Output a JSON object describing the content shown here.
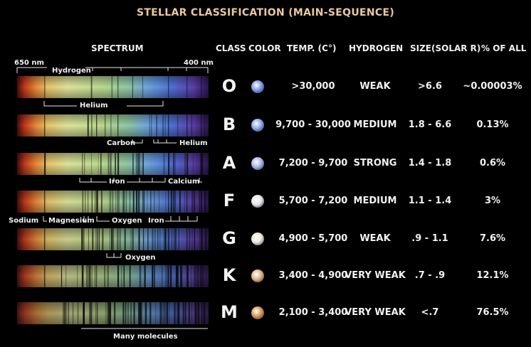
{
  "title": "STELLAR CLASSIFICATION (MAIN-SEQUENCE)",
  "headers": {
    "spectrum": "SPECTRUM",
    "class": "CLASS",
    "color": "COLOR",
    "temp": "TEMP. (C°)",
    "hydrogen": "HYDROGEN",
    "size": "SIZE(SOLAR R)",
    "percent": "% OF ALL"
  },
  "wavelength": {
    "left": "650 nm",
    "right": "400 nm",
    "hydrogen": "Hydrogen"
  },
  "rows": [
    {
      "class": "O",
      "temp": ">30,000",
      "hydrogen": "WEAK",
      "size": ">6.6",
      "percent": "~0.00003%",
      "star_color": "#7f9ae8"
    },
    {
      "class": "B",
      "temp": "9,700 - 30,000",
      "hydrogen": "MEDIUM",
      "size": "1.8 - 6.6",
      "percent": "0.13%",
      "star_color": "#8aa6ec"
    },
    {
      "class": "A",
      "temp": "7,200 - 9,700",
      "hydrogen": "STRONG",
      "size": "1.4 - 1.8",
      "percent": "0.6%",
      "star_color": "#a6b8ee"
    },
    {
      "class": "F",
      "temp": "5,700 - 7,200",
      "hydrogen": "MEDIUM",
      "size": "1.1 - 1.4",
      "percent": "3%",
      "star_color": "#e6e6ee"
    },
    {
      "class": "G",
      "temp": "4,900 - 5,700",
      "hydrogen": "WEAK",
      "size": ".9 - 1.1",
      "percent": "7.6%",
      "star_color": "#efe6dc"
    },
    {
      "class": "K",
      "temp": "3,400 - 4,900",
      "hydrogen": "VERY WEAK",
      "size": ".7 - .9",
      "percent": "12.1%",
      "star_color": "#e0b487"
    },
    {
      "class": "M",
      "temp": "2,100 - 3,400",
      "hydrogen": "VERY WEAK",
      "size": "<.7",
      "percent": "76.5%",
      "star_color": "#d79a5a"
    }
  ],
  "spectrum_labels": {
    "helium_o": "Helium",
    "carbon": "Carbon",
    "helium_b": "Helium",
    "iron_a": "Iron",
    "calcium": "Calcium",
    "sodium": "Sodium",
    "magnesium": "Magnesium",
    "oxygen_f": "Oxygen",
    "iron_f": "Iron",
    "oxygen_g": "Oxygen",
    "molecules": "Many molecules"
  }
}
